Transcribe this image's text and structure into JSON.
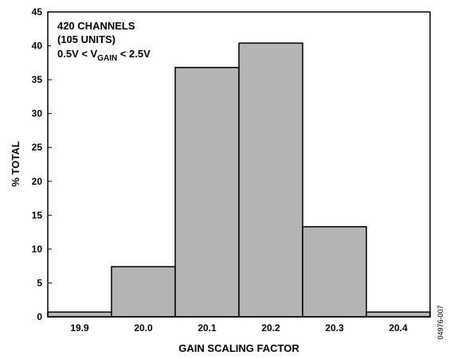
{
  "chart_data": {
    "type": "bar",
    "categories": [
      "19.9",
      "20.0",
      "20.1",
      "20.2",
      "20.3",
      "20.4"
    ],
    "values": [
      0.7,
      7.4,
      36.8,
      40.4,
      13.3,
      0.7
    ],
    "xlabel": "GAIN SCALING FACTOR",
    "ylabel": "% TOTAL",
    "ylim": [
      0,
      45
    ],
    "yticks": [
      0,
      5,
      10,
      15,
      20,
      25,
      30,
      35,
      40,
      45
    ],
    "grid": false,
    "bar_color": "#b4b4b4",
    "annotation": {
      "line1": "420 CHANNELS",
      "line2": "(105 UNITS)",
      "line3_prefix": "0.5V < V",
      "line3_sub": "GAIN",
      "line3_suffix": " < 2.5V"
    },
    "figure_code": "04976-007"
  }
}
